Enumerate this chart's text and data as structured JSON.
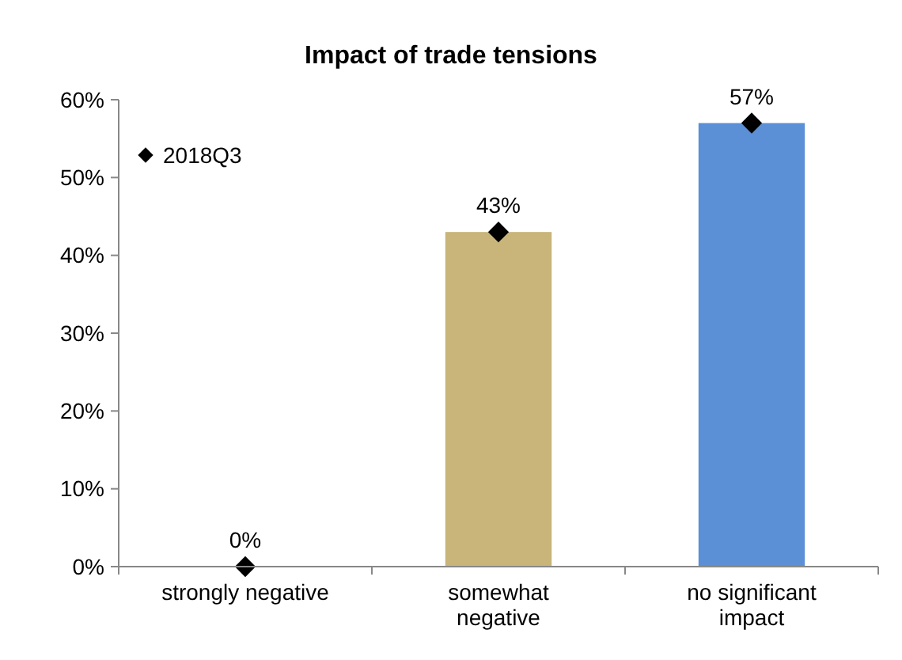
{
  "chart_data": {
    "type": "bar",
    "title": "Impact of trade tensions",
    "categories": [
      "strongly negative",
      "somewhat negative",
      "no significant impact"
    ],
    "series": [
      {
        "colors": [
          "#c9b47a",
          "#c9b47a",
          "#5b8fd6"
        ],
        "values": [
          0,
          43,
          57
        ]
      },
      {
        "type": "scatter",
        "name": "2018Q3",
        "color": "#000000",
        "marker": "diamond",
        "values": [
          0,
          43,
          57
        ],
        "value_labels": [
          "0%",
          "43%",
          "57%"
        ]
      }
    ],
    "ylim": [
      0,
      60
    ],
    "yticks": [
      {
        "value": 0,
        "label": "0%"
      },
      {
        "value": 10,
        "label": "10%"
      },
      {
        "value": 20,
        "label": "20%"
      },
      {
        "value": 30,
        "label": "30%"
      },
      {
        "value": 40,
        "label": "40%"
      },
      {
        "value": 50,
        "label": "50%"
      },
      {
        "value": 60,
        "label": "60%"
      }
    ],
    "grid": false,
    "legend": "top left"
  }
}
